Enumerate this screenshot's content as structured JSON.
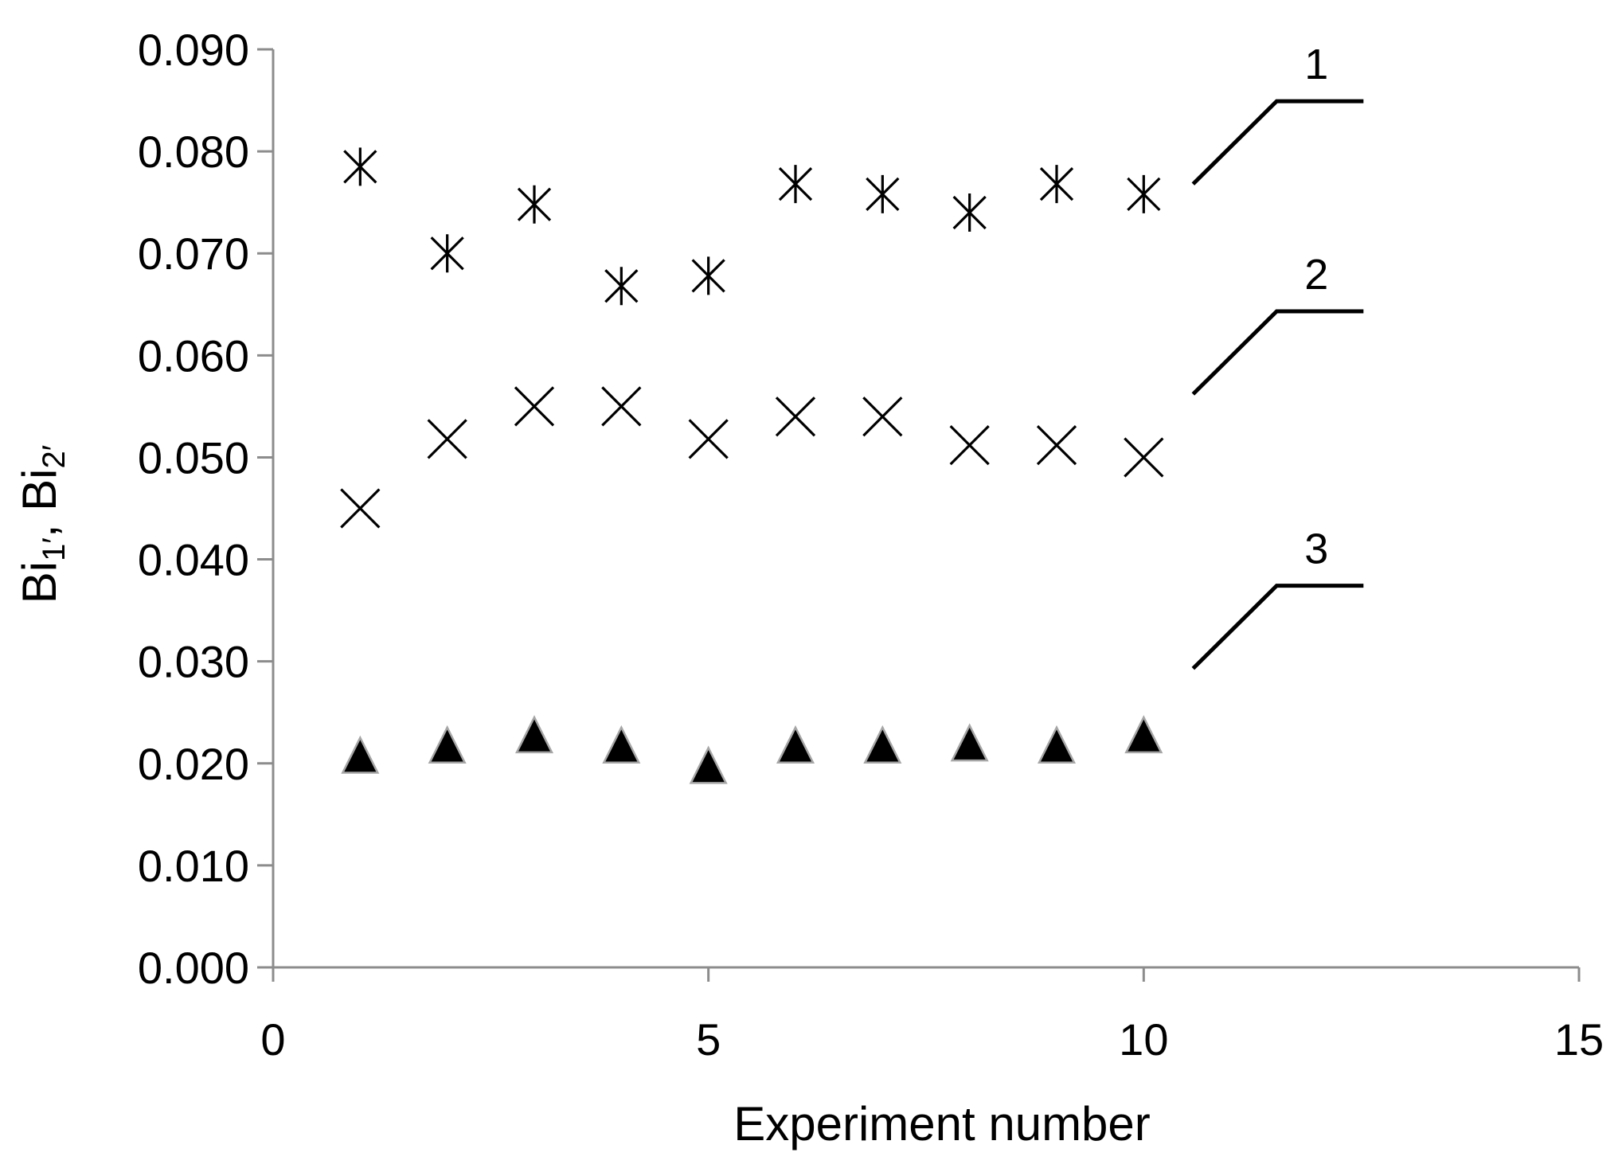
{
  "chart_data": {
    "type": "scatter",
    "xlabel": "Experiment number",
    "ylabel_main": "Bi",
    "ylabel_sub1": "1′",
    "ylabel_sep": ", Bi",
    "ylabel_sub2": "2′",
    "xlim": [
      0,
      15
    ],
    "ylim": [
      0,
      0.09
    ],
    "xticks": [
      "0",
      "5",
      "10",
      "15"
    ],
    "yticks": [
      "0.000",
      "0.010",
      "0.020",
      "0.030",
      "0.040",
      "0.050",
      "0.060",
      "0.070",
      "0.080",
      "0.090"
    ],
    "grid": false,
    "x": [
      1,
      2,
      3,
      4,
      5,
      6,
      7,
      8,
      9,
      10
    ],
    "series": [
      {
        "label": "1",
        "marker": "star",
        "color": "#000000",
        "values": [
          0.0785,
          0.07,
          0.0748,
          0.0668,
          0.0678,
          0.0768,
          0.0758,
          0.074,
          0.0768,
          0.0758
        ]
      },
      {
        "label": "2",
        "marker": "x",
        "color": "#000000",
        "values": [
          0.045,
          0.0518,
          0.055,
          0.055,
          0.0518,
          0.054,
          0.054,
          0.0512,
          0.0512,
          0.05
        ]
      },
      {
        "label": "3",
        "marker": "triangle",
        "color": "#000000",
        "values": [
          0.0208,
          0.0218,
          0.0228,
          0.0218,
          0.0198,
          0.0218,
          0.0218,
          0.022,
          0.0218,
          0.0228
        ]
      }
    ]
  }
}
